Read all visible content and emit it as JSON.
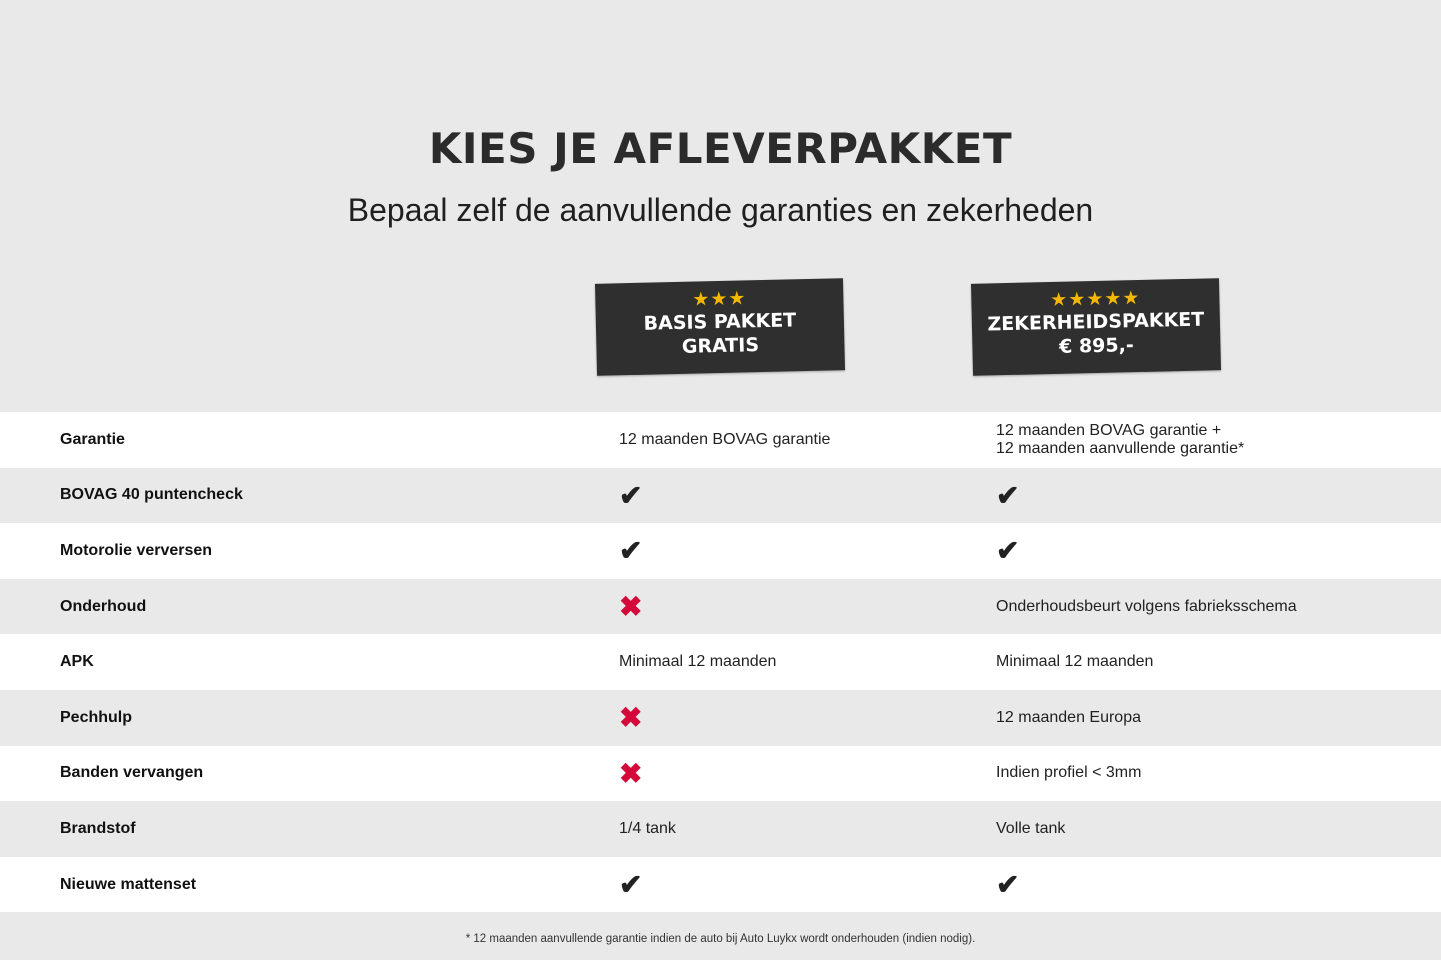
{
  "header": {
    "title": "KIES JE AFLEVERPAKKET",
    "subtitle": "Bepaal zelf de aanvullende garanties en zekerheden"
  },
  "packages": [
    {
      "stars": "★★★",
      "rating": 3,
      "name": "BASIS PAKKET",
      "price": "GRATIS"
    },
    {
      "stars": "★★★★★",
      "rating": 5,
      "name": "ZEKERHEIDSPAKKET",
      "price": "€ 895,-"
    }
  ],
  "colors": {
    "check": "#222222",
    "cross": "#d4093a",
    "star": "#f5b800",
    "badge": "#2f2f2f"
  },
  "rows": [
    {
      "label": "Garantie",
      "basis": {
        "type": "text",
        "value": "12 maanden BOVAG garantie"
      },
      "zeker": {
        "type": "text",
        "value": "12 maanden BOVAG garantie +",
        "value2": "12 maanden aanvullende garantie*"
      }
    },
    {
      "label": "BOVAG 40 puntencheck",
      "basis": {
        "type": "check",
        "value": "✔"
      },
      "zeker": {
        "type": "check",
        "value": "✔"
      }
    },
    {
      "label": "Motorolie verversen",
      "basis": {
        "type": "check",
        "value": "✔"
      },
      "zeker": {
        "type": "check",
        "value": "✔"
      }
    },
    {
      "label": "Onderhoud",
      "basis": {
        "type": "cross",
        "value": "✖"
      },
      "zeker": {
        "type": "text",
        "value": "Onderhoudsbeurt volgens fabrieksschema"
      }
    },
    {
      "label": "APK",
      "basis": {
        "type": "text",
        "value": "Minimaal 12 maanden"
      },
      "zeker": {
        "type": "text",
        "value": "Minimaal 12 maanden"
      }
    },
    {
      "label": "Pechhulp",
      "basis": {
        "type": "cross",
        "value": "✖"
      },
      "zeker": {
        "type": "text",
        "value": "12 maanden Europa"
      }
    },
    {
      "label": "Banden vervangen",
      "basis": {
        "type": "cross",
        "value": "✖"
      },
      "zeker": {
        "type": "text",
        "value": "Indien profiel < 3mm"
      }
    },
    {
      "label": "Brandstof",
      "basis": {
        "type": "text",
        "value": "1/4 tank"
      },
      "zeker": {
        "type": "text",
        "value": "Volle tank"
      }
    },
    {
      "label": "Nieuwe mattenset",
      "basis": {
        "type": "check",
        "value": "✔"
      },
      "zeker": {
        "type": "check",
        "value": "✔"
      }
    }
  ],
  "footnote": "* 12 maanden aanvullende garantie indien de auto bij Auto Luykx wordt onderhouden (indien nodig)."
}
